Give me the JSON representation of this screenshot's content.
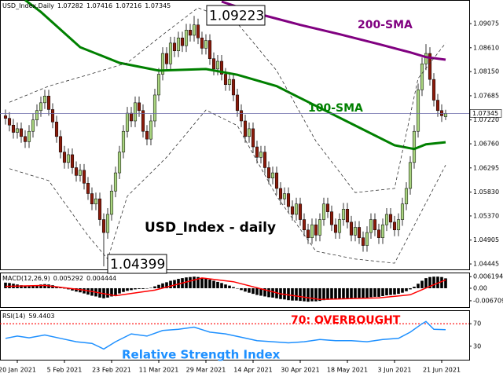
{
  "chart_data": [
    {
      "type": "candlestick",
      "header": "USD_Index,Daily",
      "open": [
        1.073,
        1.0725,
        1.0712,
        1.0698,
        1.0705,
        1.069,
        1.068,
        1.07,
        1.0722,
        1.074,
        1.0755,
        1.0768,
        1.0742,
        1.0718,
        1.069,
        1.066,
        1.064,
        1.0655,
        1.063,
        1.0615,
        1.0625,
        1.06,
        1.058,
        1.056,
        1.057,
        1.053,
        1.0505,
        1.054,
        1.0585,
        1.062,
        1.066,
        1.07,
        1.0735,
        1.072,
        1.0755,
        1.074,
        1.07,
        1.0685,
        1.072,
        1.077,
        1.081,
        1.085,
        1.083,
        1.087,
        1.0855,
        1.088,
        1.0865,
        1.0895,
        1.0885,
        1.0905,
        1.088,
        1.086,
        1.0875,
        1.084,
        1.082,
        1.0835,
        1.081,
        1.079,
        1.08,
        1.077,
        1.074,
        1.072,
        1.069,
        1.0705,
        1.067,
        1.065,
        1.066,
        1.063,
        1.061,
        1.062,
        1.059,
        1.057,
        1.058,
        1.0555,
        1.054,
        1.056,
        1.053,
        1.051,
        1.0495,
        1.052,
        1.05,
        1.053,
        1.056,
        1.0545,
        1.052,
        1.0505,
        1.053,
        1.055,
        1.0525,
        1.05,
        1.0515,
        1.0495,
        1.048,
        1.0505,
        1.053,
        1.051,
        1.0495,
        1.052,
        1.054,
        1.0525,
        1.051,
        1.053,
        1.056,
        1.059,
        1.064,
        1.07,
        1.078,
        1.083,
        1.085,
        1.08,
        1.076,
        1.074,
        1.07282
      ],
      "high": [
        1.0742,
        1.0737,
        1.0724,
        1.0717,
        1.0717,
        1.0702,
        1.0712,
        1.0734,
        1.0752,
        1.0767,
        1.078,
        1.078,
        1.0754,
        1.073,
        1.0702,
        1.0672,
        1.0667,
        1.0667,
        1.0642,
        1.0637,
        1.0637,
        1.0612,
        1.0592,
        1.0582,
        1.0582,
        1.0542,
        1.0552,
        1.0597,
        1.0632,
        1.0672,
        1.0712,
        1.0747,
        1.0747,
        1.0767,
        1.0767,
        1.0752,
        1.0712,
        1.0732,
        1.0782,
        1.0822,
        1.0862,
        1.0862,
        1.0882,
        1.0882,
        1.0892,
        1.0892,
        1.0907,
        1.0907,
        1.09223,
        1.0917,
        1.0892,
        1.0887,
        1.0887,
        1.0852,
        1.0847,
        1.0847,
        1.0822,
        1.0812,
        1.0812,
        1.0782,
        1.0752,
        1.0732,
        1.0717,
        1.0717,
        1.0682,
        1.0672,
        1.0672,
        1.0642,
        1.0632,
        1.0632,
        1.0602,
        1.0592,
        1.0592,
        1.0567,
        1.0572,
        1.0572,
        1.0542,
        1.0522,
        1.0532,
        1.0532,
        1.0542,
        1.0572,
        1.0572,
        1.0557,
        1.0532,
        1.0542,
        1.0562,
        1.0562,
        1.0537,
        1.0527,
        1.0527,
        1.0507,
        1.0517,
        1.0542,
        1.0542,
        1.0522,
        1.0532,
        1.0552,
        1.0552,
        1.0537,
        1.0542,
        1.0572,
        1.0602,
        1.0652,
        1.0712,
        1.0792,
        1.0842,
        1.0868,
        1.0862,
        1.0812,
        1.0772,
        1.0752,
        1.07416
      ],
      "low": [
        1.0713,
        1.07,
        1.0686,
        1.0686,
        1.0678,
        1.0668,
        1.0668,
        1.0688,
        1.071,
        1.0728,
        1.0743,
        1.073,
        1.0706,
        1.0678,
        1.0648,
        1.0628,
        1.0628,
        1.0618,
        1.0603,
        1.0603,
        1.0588,
        1.0568,
        1.0548,
        1.0548,
        1.0518,
        1.04399,
        1.0493,
        1.0528,
        1.0573,
        1.0608,
        1.0648,
        1.0688,
        1.0708,
        1.0708,
        1.0728,
        1.0688,
        1.0673,
        1.0673,
        1.0708,
        1.0758,
        1.0798,
        1.0818,
        1.0818,
        1.0843,
        1.0843,
        1.0853,
        1.0853,
        1.0873,
        1.0873,
        1.0868,
        1.0848,
        1.0848,
        1.0828,
        1.0808,
        1.0808,
        1.0798,
        1.0778,
        1.0778,
        1.0758,
        1.0728,
        1.0708,
        1.0678,
        1.0678,
        1.0658,
        1.0638,
        1.0638,
        1.0618,
        1.0598,
        1.0598,
        1.0578,
        1.0558,
        1.0558,
        1.0543,
        1.0528,
        1.0528,
        1.0518,
        1.0498,
        1.0483,
        1.0483,
        1.0488,
        1.0488,
        1.0518,
        1.0533,
        1.0508,
        1.0493,
        1.0493,
        1.0518,
        1.0513,
        1.0488,
        1.0488,
        1.0483,
        1.0468,
        1.0468,
        1.0493,
        1.0498,
        1.0483,
        1.0483,
        1.0508,
        1.0513,
        1.0498,
        1.0498,
        1.0518,
        1.0548,
        1.0578,
        1.0628,
        1.0688,
        1.0768,
        1.0818,
        1.0788,
        1.0748,
        1.0728,
        1.0718,
        1.07216
      ],
      "close": [
        1.0725,
        1.0712,
        1.0698,
        1.0705,
        1.069,
        1.068,
        1.07,
        1.0722,
        1.074,
        1.0755,
        1.0768,
        1.0742,
        1.0718,
        1.069,
        1.066,
        1.064,
        1.0655,
        1.063,
        1.0615,
        1.0625,
        1.06,
        1.058,
        1.056,
        1.057,
        1.053,
        1.0505,
        1.054,
        1.0585,
        1.062,
        1.066,
        1.07,
        1.0735,
        1.072,
        1.0755,
        1.074,
        1.07,
        1.0685,
        1.072,
        1.077,
        1.081,
        1.085,
        1.083,
        1.087,
        1.0855,
        1.088,
        1.0865,
        1.0895,
        1.0885,
        1.0905,
        1.088,
        1.086,
        1.0875,
        1.084,
        1.082,
        1.0835,
        1.081,
        1.079,
        1.08,
        1.077,
        1.074,
        1.072,
        1.069,
        1.0705,
        1.067,
        1.065,
        1.066,
        1.063,
        1.061,
        1.062,
        1.059,
        1.057,
        1.058,
        1.0555,
        1.054,
        1.056,
        1.053,
        1.051,
        1.0495,
        1.052,
        1.05,
        1.053,
        1.056,
        1.0545,
        1.052,
        1.0505,
        1.053,
        1.055,
        1.0525,
        1.05,
        1.0515,
        1.0495,
        1.048,
        1.0505,
        1.053,
        1.051,
        1.0495,
        1.052,
        1.054,
        1.0525,
        1.051,
        1.053,
        1.056,
        1.059,
        1.064,
        1.07,
        1.078,
        1.083,
        1.085,
        1.08,
        1.076,
        1.074,
        1.073,
        1.07345
      ],
      "up_color": "#a9d47f",
      "down_color": "#8b1a0a",
      "price_line_color": "#6a6aa8",
      "ylim": [
        1.0434,
        1.0953
      ],
      "yticks": [
        1.09075,
        {
          "value": 1.0861,
          "label": "1.08610"
        },
        {
          "value": 1.0815,
          "label": "1.08150"
        },
        1.07685,
        {
          "value": 1.0722,
          "label": "1.07220"
        },
        {
          "value": 1.0676,
          "label": "1.06760"
        },
        1.06295,
        {
          "value": 1.0583,
          "label": "1.05830"
        },
        {
          "value": 1.0537,
          "label": "1.05370"
        },
        1.04905,
        1.04445
      ],
      "xlim": [
        -1.4,
        118
      ],
      "xticks": [
        {
          "value": 3,
          "label": "20 Jan 2021"
        },
        {
          "value": 15,
          "label": "5 Feb 2021"
        },
        {
          "value": 27,
          "label": "23 Feb 2021"
        },
        {
          "value": 39,
          "label": "11 Mar 2021"
        },
        {
          "value": 51,
          "label": "29 Mar 2021"
        },
        {
          "value": 63,
          "label": "14 Apr 2021"
        },
        {
          "value": 75,
          "label": "30 Apr 2021"
        },
        {
          "value": 87,
          "label": "18 May 2021"
        },
        {
          "value": 99,
          "label": "3 Jun 2021"
        },
        {
          "value": 111,
          "label": "21 Jun 2021"
        }
      ],
      "overlays": [
        {
          "name": "200-SMA",
          "color": "#800080",
          "width": 3,
          "x": [
            55,
            65,
            75,
            85,
            95,
            103,
            107,
            112
          ],
          "values": [
            1.095,
            1.0925,
            1.0905,
            1.0887,
            1.0868,
            1.0852,
            1.0843,
            1.0838
          ]
        },
        {
          "name": "100-SMA",
          "color": "#008000",
          "width": 3,
          "x": [
            5,
            9,
            19,
            29,
            39,
            51,
            59,
            69,
            79,
            89,
            99,
            104,
            107,
            112
          ],
          "values": [
            1.0953,
            1.093,
            1.0862,
            1.0832,
            1.0817,
            1.082,
            1.0809,
            1.0787,
            1.0749,
            1.0711,
            1.0673,
            1.0666,
            1.0675,
            1.0679
          ]
        },
        {
          "color": "#333333",
          "width": 0.8,
          "dash": true,
          "x": [
            1,
            11,
            21,
            31,
            41,
            49,
            59,
            69,
            79,
            89,
            99,
            105,
            112
          ],
          "values": [
            1.0756,
            1.0787,
            1.0809,
            1.0832,
            1.0892,
            1.0938,
            1.0908,
            1.0817,
            1.0681,
            1.0582,
            1.059,
            1.0802,
            1.087
          ]
        },
        {
          "color": "#333333",
          "width": 0.8,
          "dash": true,
          "x": [
            1,
            11,
            21,
            26,
            31,
            41,
            51,
            59,
            69,
            79,
            89,
            99,
            112
          ],
          "values": [
            1.0628,
            1.0605,
            1.0499,
            1.0454,
            1.0575,
            1.065,
            1.0741,
            1.0711,
            1.0575,
            1.0469,
            1.0454,
            1.0446,
            1.0635
          ]
        }
      ],
      "annotations": [
        {
          "text": "200-SMA",
          "color": "#800080"
        },
        {
          "text": "100-SMA",
          "color": "#008000"
        },
        {
          "text": "USD_Index - daily",
          "color": "#000000"
        }
      ]
    },
    {
      "type": "bar",
      "label": "MACD(12,26,9)",
      "color": "#000000",
      "values": [
        0.003,
        0.0028,
        0.0024,
        0.002,
        0.0016,
        0.0012,
        0.001,
        0.0012,
        0.0016,
        0.002,
        0.0022,
        0.002,
        0.0016,
        0.001,
        0.0004,
        -0.0002,
        -0.0006,
        -0.0012,
        -0.0018,
        -0.0022,
        -0.0028,
        -0.0034,
        -0.004,
        -0.0044,
        -0.005,
        -0.0054,
        -0.005,
        -0.0044,
        -0.0036,
        -0.0028,
        -0.002,
        -0.0014,
        -0.001,
        -0.0006,
        -0.0004,
        -0.0004,
        -0.0002,
        0.0002,
        0.001,
        0.0018,
        0.0026,
        0.0032,
        0.004,
        0.0044,
        0.005,
        0.0054,
        0.0058,
        0.006,
        0.0062,
        0.006,
        0.0056,
        0.0052,
        0.0046,
        0.004,
        0.0034,
        0.0028,
        0.002,
        0.0014,
        0.0006,
        -0.0002,
        -0.001,
        -0.0018,
        -0.0024,
        -0.003,
        -0.0036,
        -0.004,
        -0.0044,
        -0.0048,
        -0.005,
        -0.0054,
        -0.0058,
        -0.006,
        -0.0064,
        -0.0066,
        -0.0066,
        -0.0068,
        -0.007,
        -0.0072,
        -0.007,
        -0.007,
        -0.0068,
        -0.0064,
        -0.0062,
        -0.006,
        -0.006,
        -0.0058,
        -0.0054,
        -0.0054,
        -0.0054,
        -0.0052,
        -0.0052,
        -0.0054,
        -0.0052,
        -0.0048,
        -0.0046,
        -0.0046,
        -0.0042,
        -0.0038,
        -0.0036,
        -0.0034,
        -0.003,
        -0.0024,
        -0.0016,
        -0.0006,
        0.0008,
        0.0024,
        0.004,
        0.0054,
        0.006,
        0.0062,
        0.0062,
        0.006,
        0.005292
      ],
      "signal": {
        "color": "#ff0000",
        "x": [
          0,
          10,
          20,
          28,
          38,
          50,
          58,
          70,
          80,
          95,
          103,
          108,
          112
        ],
        "values": [
          0.001,
          0.0015,
          -0.001,
          -0.004,
          -0.001,
          0.0055,
          0.0035,
          -0.003,
          -0.006,
          -0.0052,
          -0.0035,
          0.001,
          0.004444
        ]
      },
      "ylim": [
        -0.0101,
        0.0084
      ],
      "yticks": [
        0.006194,
        {
          "value": 0,
          "label": "0.00"
        },
        -0.006709
      ]
    },
    {
      "type": "line",
      "label": "RSI(14)",
      "color": "#1e90ff",
      "x": [
        0,
        3,
        6,
        10,
        14,
        18,
        22,
        25,
        28,
        32,
        36,
        40,
        44,
        48,
        52,
        56,
        60,
        64,
        68,
        72,
        76,
        80,
        84,
        88,
        92,
        96,
        100,
        103,
        106,
        107,
        109,
        112
      ],
      "values": [
        44,
        48,
        45,
        50,
        44,
        38,
        35,
        25,
        38,
        52,
        48,
        58,
        60,
        64,
        55,
        52,
        46,
        40,
        38,
        36,
        38,
        42,
        40,
        40,
        38,
        42,
        44,
        55,
        70,
        74,
        60,
        59.4403
      ],
      "ylim": [
        6,
        94
      ],
      "yticks": [
        70,
        30
      ],
      "level": 70,
      "level_color": "#ff0000",
      "annotations": [
        {
          "text": "70: OVERBOUGHT",
          "color": "#ff0000"
        },
        {
          "text": "Relative Strength Index",
          "color": "#1e90ff"
        }
      ]
    }
  ]
}
